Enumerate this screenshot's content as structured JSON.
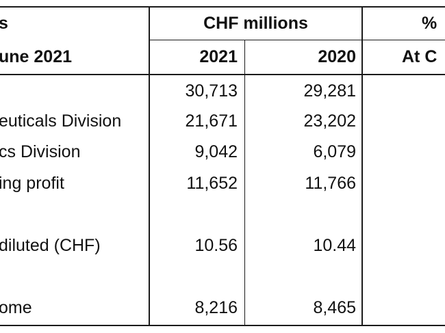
{
  "header": {
    "title_fragment": "s",
    "period_fragment": "une 2021",
    "group_label": "CHF millions",
    "percent_fragment": "%",
    "year_2021": "2021",
    "year_2020": "2020",
    "at_fragment": "At C"
  },
  "rows": [
    {
      "label": "",
      "v2021": "30,713",
      "v2020": "29,281"
    },
    {
      "label": "euticals Division",
      "v2021": "21,671",
      "v2020": "23,202"
    },
    {
      "label": "cs Division",
      "v2021": "9,042",
      "v2020": "6,079"
    },
    {
      "label": "ing profit",
      "v2021": "11,652",
      "v2020": "11,766"
    },
    {
      "label": "diluted (CHF)",
      "v2021": "10.56",
      "v2020": "10.44"
    },
    {
      "label": "ome",
      "v2021": "8,216",
      "v2020": "8,465"
    }
  ]
}
